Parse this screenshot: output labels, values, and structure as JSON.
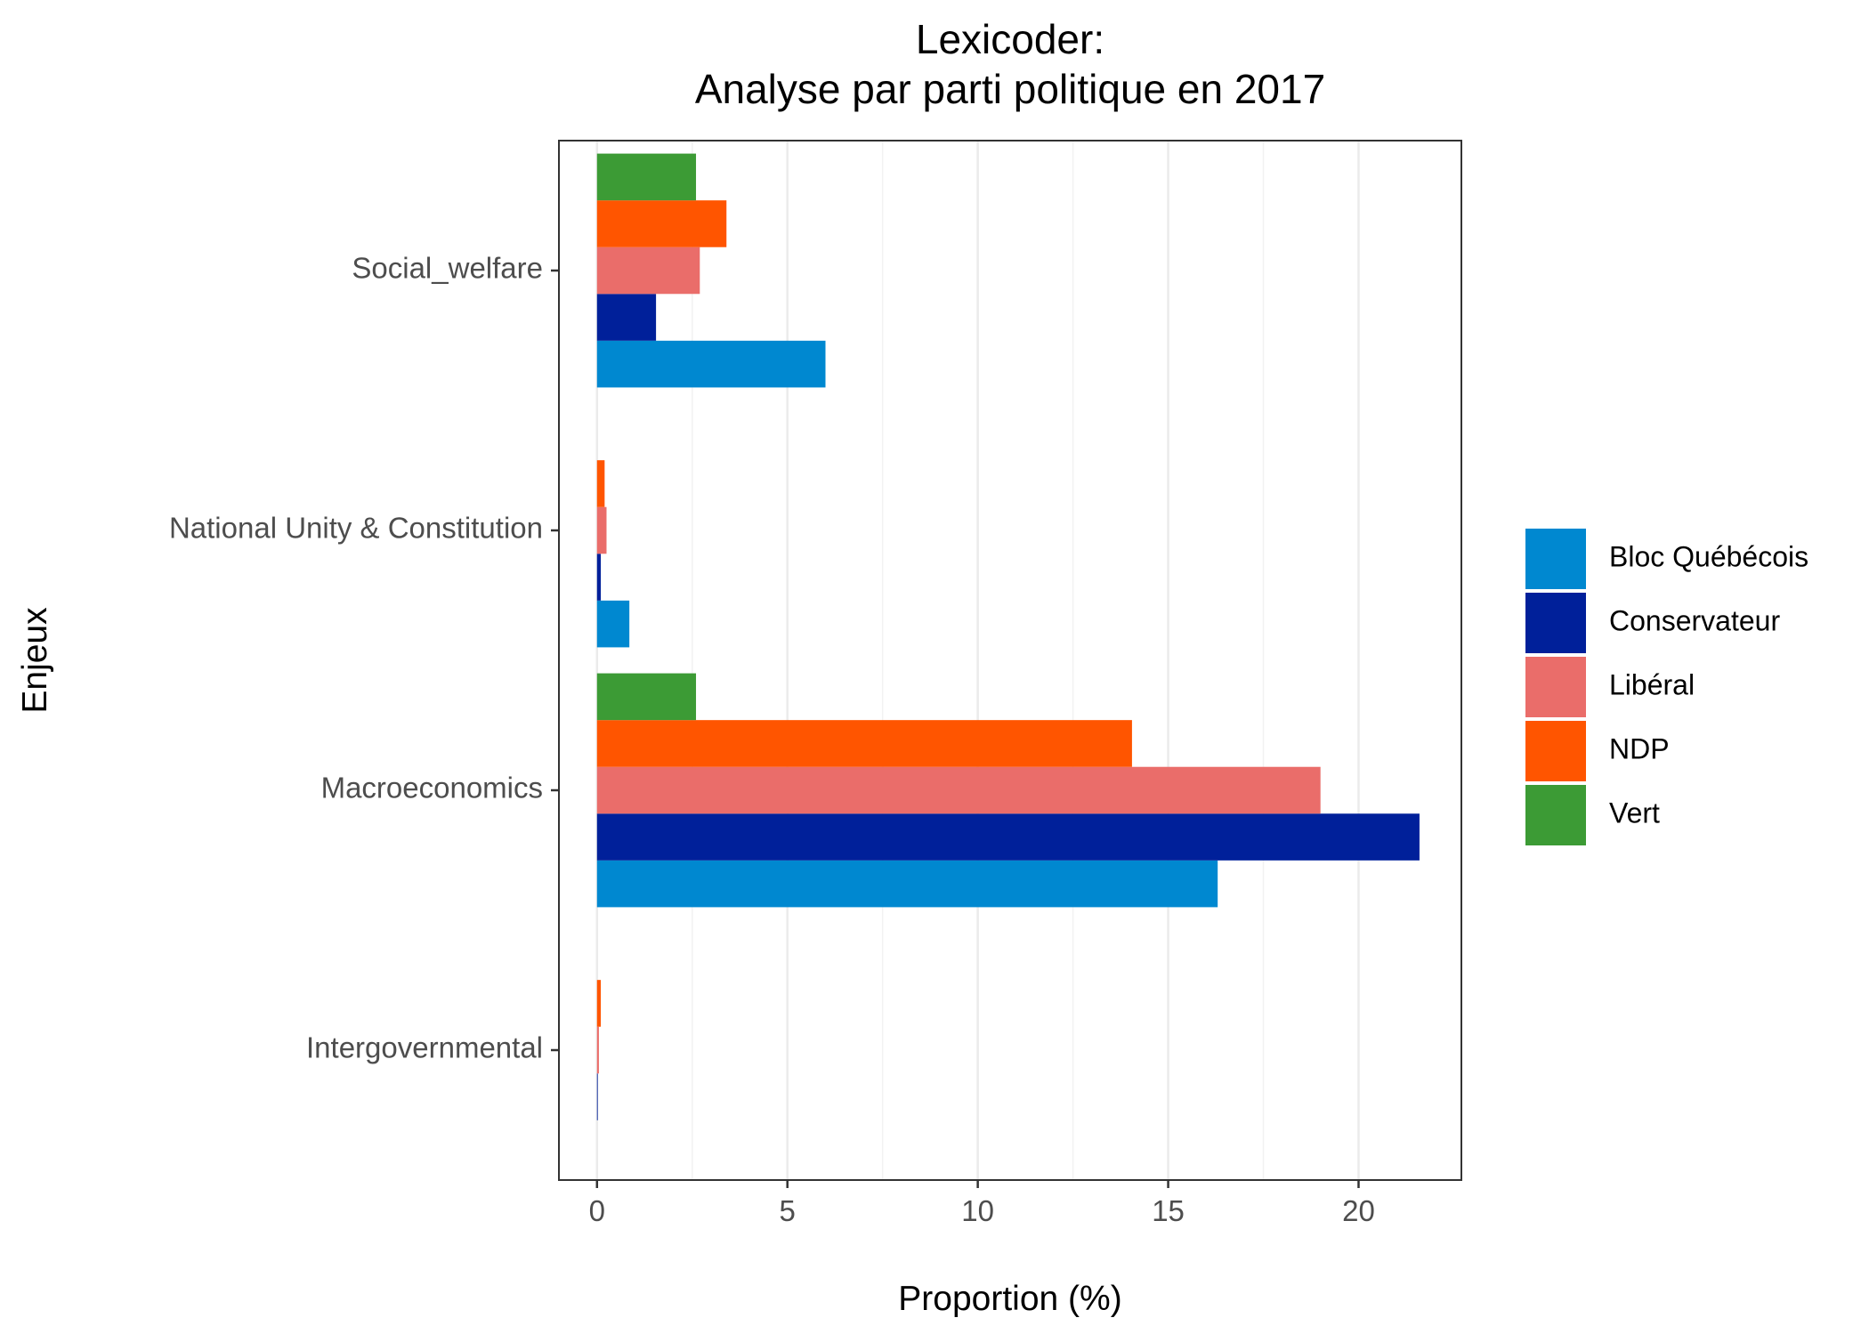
{
  "chart_data": {
    "type": "bar",
    "orientation": "horizontal",
    "title": [
      "Lexicoder:",
      "Analyse par parti politique en 2017"
    ],
    "xlabel": "Proportion (%)",
    "ylabel": "Enjeux",
    "xlim": [
      -1,
      22.7
    ],
    "xticks": [
      0,
      5,
      10,
      15,
      20
    ],
    "categories": [
      "Social_welfare",
      "National Unity & Constitution",
      "Macroeconomics",
      "Intergovernmental"
    ],
    "series": [
      {
        "name": "Bloc Québécois",
        "color": "#0088d0",
        "values": [
          6.0,
          0.85,
          16.3,
          0.0
        ]
      },
      {
        "name": "Conservateur",
        "color": "#00209a",
        "values": [
          1.55,
          0.1,
          21.6,
          0.02
        ]
      },
      {
        "name": "Libéral",
        "color": "#ea6d6a",
        "values": [
          2.7,
          0.25,
          19.0,
          0.05
        ]
      },
      {
        "name": "NDP",
        "color": "#ff5500",
        "values": [
          3.4,
          0.2,
          14.05,
          0.1
        ]
      },
      {
        "name": "Vert",
        "color": "#3c9b35",
        "values": [
          2.6,
          0.0,
          2.6,
          0.0
        ]
      }
    ],
    "grid": true,
    "legend_position": "right",
    "theme": "bw"
  }
}
